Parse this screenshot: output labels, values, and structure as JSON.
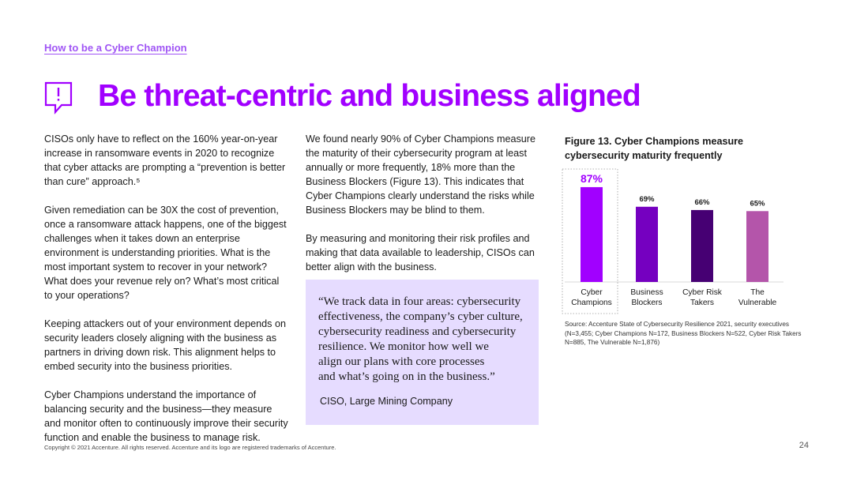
{
  "breadcrumb": "How to be a Cyber Champion",
  "title": "Be threat-centric and business aligned",
  "title_icon": "speech-bubble-alert-icon",
  "column1": {
    "paragraphs": [
      "CISOs only have to reflect on the 160% year-on-year increase in ransomware events in 2020 to recognize that cyber attacks are prompting a “prevention is better than cure” approach.⁵",
      "Given remediation can be 30X the cost of prevention, once a ransomware attack happens, one of the biggest challenges when it takes down an enterprise environment is understanding priorities. What is the most important system to recover in your network? What does your revenue rely on? What’s most critical to your operations?",
      "Keeping attackers out of your environment depends on security leaders closely aligning with the business as partners in driving down risk. This alignment helps to embed security into the business priorities.",
      "Cyber Champions understand the importance of balancing security and the business—they measure and monitor often to continuously improve their security function and enable the business to manage risk."
    ]
  },
  "column2": {
    "paragraphs": [
      "We found nearly 90% of Cyber Champions measure the maturity of their cybersecurity program at least annually or more frequently, 18% more than the Business Blockers (Figure 13). This indicates that Cyber Champions clearly understand the risks while Business Blockers may be blind to them.",
      "By measuring and monitoring their risk profiles and making that data available to leadership, CISOs can better align with the business."
    ]
  },
  "quote": {
    "text": "“We track data in four areas: cybersecurity\n  effectiveness, the company’s cyber culture,\n  cybersecurity readiness and cybersecurity\n  resilience. We monitor how well we\n  align our plans with core processes\n  and what’s going on in the business.”",
    "attribution": "CISO, Large Mining Company"
  },
  "figure_title": "Figure 13. Cyber Champions measure cybersecurity maturity frequently",
  "chart_data": {
    "type": "bar",
    "categories": [
      "Cyber Champions",
      "Business Blockers",
      "Cyber Risk Takers",
      "The Vulnerable"
    ],
    "category_lines": [
      [
        "Cyber",
        "Champions"
      ],
      [
        "Business",
        "Blockers"
      ],
      [
        "Cyber Risk",
        "Takers"
      ],
      [
        "The",
        "Vulnerable"
      ]
    ],
    "values": [
      87,
      69,
      66,
      65
    ],
    "labels": [
      "87%",
      "69%",
      "66%",
      "65%"
    ],
    "colors": [
      "#a100ff",
      "#7500c0",
      "#460073",
      "#b455aa"
    ],
    "highlight_index": 0,
    "ylim": [
      0,
      100
    ],
    "grid": false
  },
  "source": "Source: Accenture State of Cybersecurity Resilience 2021, security executives (N=3,455; Cyber Champions N=172, Business Blockers N=522, Cyber Risk Takers N=885, The Vulnerable N=1,876)",
  "footer": "Copyright © 2021 Accenture. All rights reserved. Accenture and its logo are registered trademarks of Accenture.",
  "page_number": "24"
}
